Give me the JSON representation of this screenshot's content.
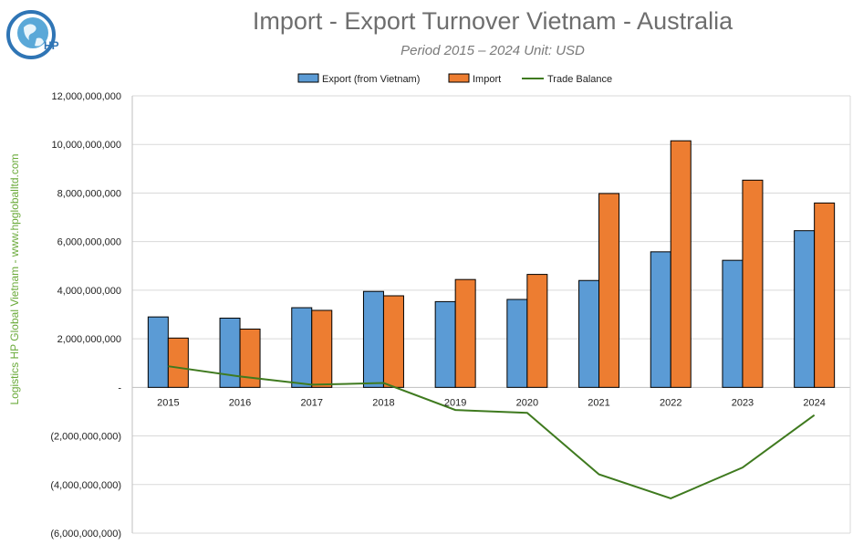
{
  "header": {
    "title": "Import - Export Turnover Vietnam - Australia",
    "subtitle": "Period 2015 – 2024  Unit: USD",
    "side_text": "Logistics HP Global Vietnam - www.hpgloballtd.com",
    "logo_text": "HP"
  },
  "colors": {
    "export": "#5b9bd5",
    "import": "#ed7d31",
    "balance": "#3f7a1f",
    "grid": "#d9d9d9"
  },
  "chart_data": {
    "type": "bar",
    "title": "Import - Export Turnover Vietnam - Australia",
    "subtitle": "Period 2015 – 2024  Unit: USD",
    "categories": [
      "2015",
      "2016",
      "2017",
      "2018",
      "2019",
      "2020",
      "2021",
      "2022",
      "2023",
      "2024"
    ],
    "series": [
      {
        "name": "Export (from Vietnam)",
        "type": "bar",
        "values": [
          2900000000,
          2850000000,
          3280000000,
          3950000000,
          3530000000,
          3620000000,
          4400000000,
          5580000000,
          5230000000,
          6450000000
        ]
      },
      {
        "name": "Import",
        "type": "bar",
        "values": [
          2030000000,
          2400000000,
          3170000000,
          3770000000,
          4440000000,
          4650000000,
          7980000000,
          10150000000,
          8530000000,
          7590000000
        ]
      },
      {
        "name": "Trade Balance",
        "type": "line",
        "values": [
          870000000,
          450000000,
          110000000,
          180000000,
          -930000000,
          -1050000000,
          -3580000000,
          -4570000000,
          -3300000000,
          -1140000000
        ]
      }
    ],
    "ylim": [
      -6000000000,
      12000000000
    ],
    "yticks": [
      12000000000,
      10000000000,
      8000000000,
      6000000000,
      4000000000,
      2000000000,
      0,
      -2000000000,
      -4000000000,
      -6000000000
    ],
    "ytick_labels": [
      "12,000,000,000",
      "10,000,000,000",
      "8,000,000,000",
      "6,000,000,000",
      "4,000,000,000",
      "2,000,000,000",
      "-",
      "(2,000,000,000)",
      "(4,000,000,000)",
      "(6,000,000,000)"
    ],
    "xlabel": "",
    "ylabel": "",
    "grid": true,
    "legend_position": "top"
  }
}
